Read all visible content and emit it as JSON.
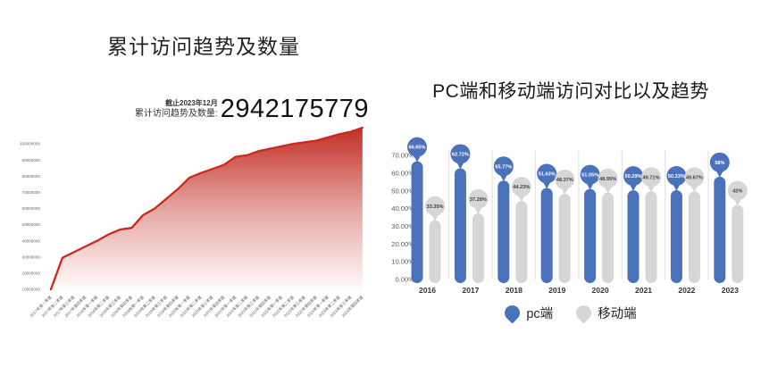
{
  "left_panel": {
    "title": "累计访问趋势及数量",
    "asof_note": "截止2023年12月",
    "stat_label": "累计访问趋势及数量:",
    "stat_value": "2942175779"
  },
  "right_panel": {
    "title": "PC端和移动端访问对比以及趋势",
    "legend": [
      {
        "label": "pc端",
        "color": "#4a72ba"
      },
      {
        "label": "移动端",
        "color": "#d6d6d6"
      }
    ]
  },
  "colors": {
    "red_line": "#ce271c",
    "red_fill": "#c1281e",
    "pc_blue": "#4a72ba",
    "mobile_gray": "#d6d6d6",
    "axis_text": "#595959",
    "separator": "#e4e4e4",
    "balloon_text_dark": "#404040"
  },
  "chart_data": [
    {
      "type": "area",
      "title": "累计访问趋势及数量",
      "x": [
        "2017年第一季度",
        "2017年第二季度",
        "2017年第三季度",
        "2017年第四季度",
        "2018年第一季度",
        "2018年第二季度",
        "2018年第三季度",
        "2018年第四季度",
        "2019年第一季度",
        "2019年第二季度",
        "2019年第三季度",
        "2019年第四季度",
        "2020年第一季度",
        "2020年第二季度",
        "2020年第三季度",
        "2020年第四季度",
        "2021年第一季度",
        "2021年第二季度",
        "2021年第三季度",
        "2021年第四季度",
        "2022年第一季度",
        "2022年第二季度",
        "2022年第三季度",
        "2022年第四季度",
        "2023年第一季度",
        "2023年第二季度",
        "2023年第三季度",
        "2023年第四季度"
      ],
      "values": [
        10000000,
        29500000,
        33000000,
        36500000,
        40000000,
        44000000,
        47000000,
        48000000,
        56000000,
        60000000,
        66000000,
        72000000,
        79000000,
        82000000,
        84500000,
        87000000,
        92000000,
        93000000,
        95500000,
        97000000,
        98500000,
        100000000,
        101000000,
        102000000,
        104000000,
        106000000,
        107500000,
        110000000
      ],
      "yticks": [
        "10000000",
        "20000000",
        "30000000",
        "40000000",
        "50000000",
        "60000000",
        "70000000",
        "80000000",
        "90000000",
        "100000000"
      ],
      "ylim": [
        10000000,
        110000000
      ],
      "grid": false,
      "annotation_asof": "截止2023年12月",
      "annotation_total": "2942175779"
    },
    {
      "type": "bar",
      "title": "PC端和移动端访问对比以及趋势",
      "categories": [
        "2016",
        "2017",
        "2018",
        "2019",
        "2020",
        "2021",
        "2022",
        "2023"
      ],
      "series": [
        {
          "name": "pc端",
          "color": "#4a72ba",
          "values": [
            66.65,
            62.72,
            55.77,
            51.63,
            51.05,
            50.29,
            50.33,
            58
          ]
        },
        {
          "name": "移动端",
          "color": "#d6d6d6",
          "values": [
            33.35,
            37.28,
            44.23,
            48.37,
            48.95,
            49.71,
            49.67,
            42
          ]
        }
      ],
      "value_suffix": "%",
      "yticks": [
        "0.00%",
        "10.00%",
        "20.00%",
        "30.00%",
        "40.00%",
        "50.00%",
        "60.00%",
        "70.00%"
      ],
      "ylim": [
        0,
        70
      ],
      "grid": false,
      "legend_position": "bottom"
    }
  ]
}
